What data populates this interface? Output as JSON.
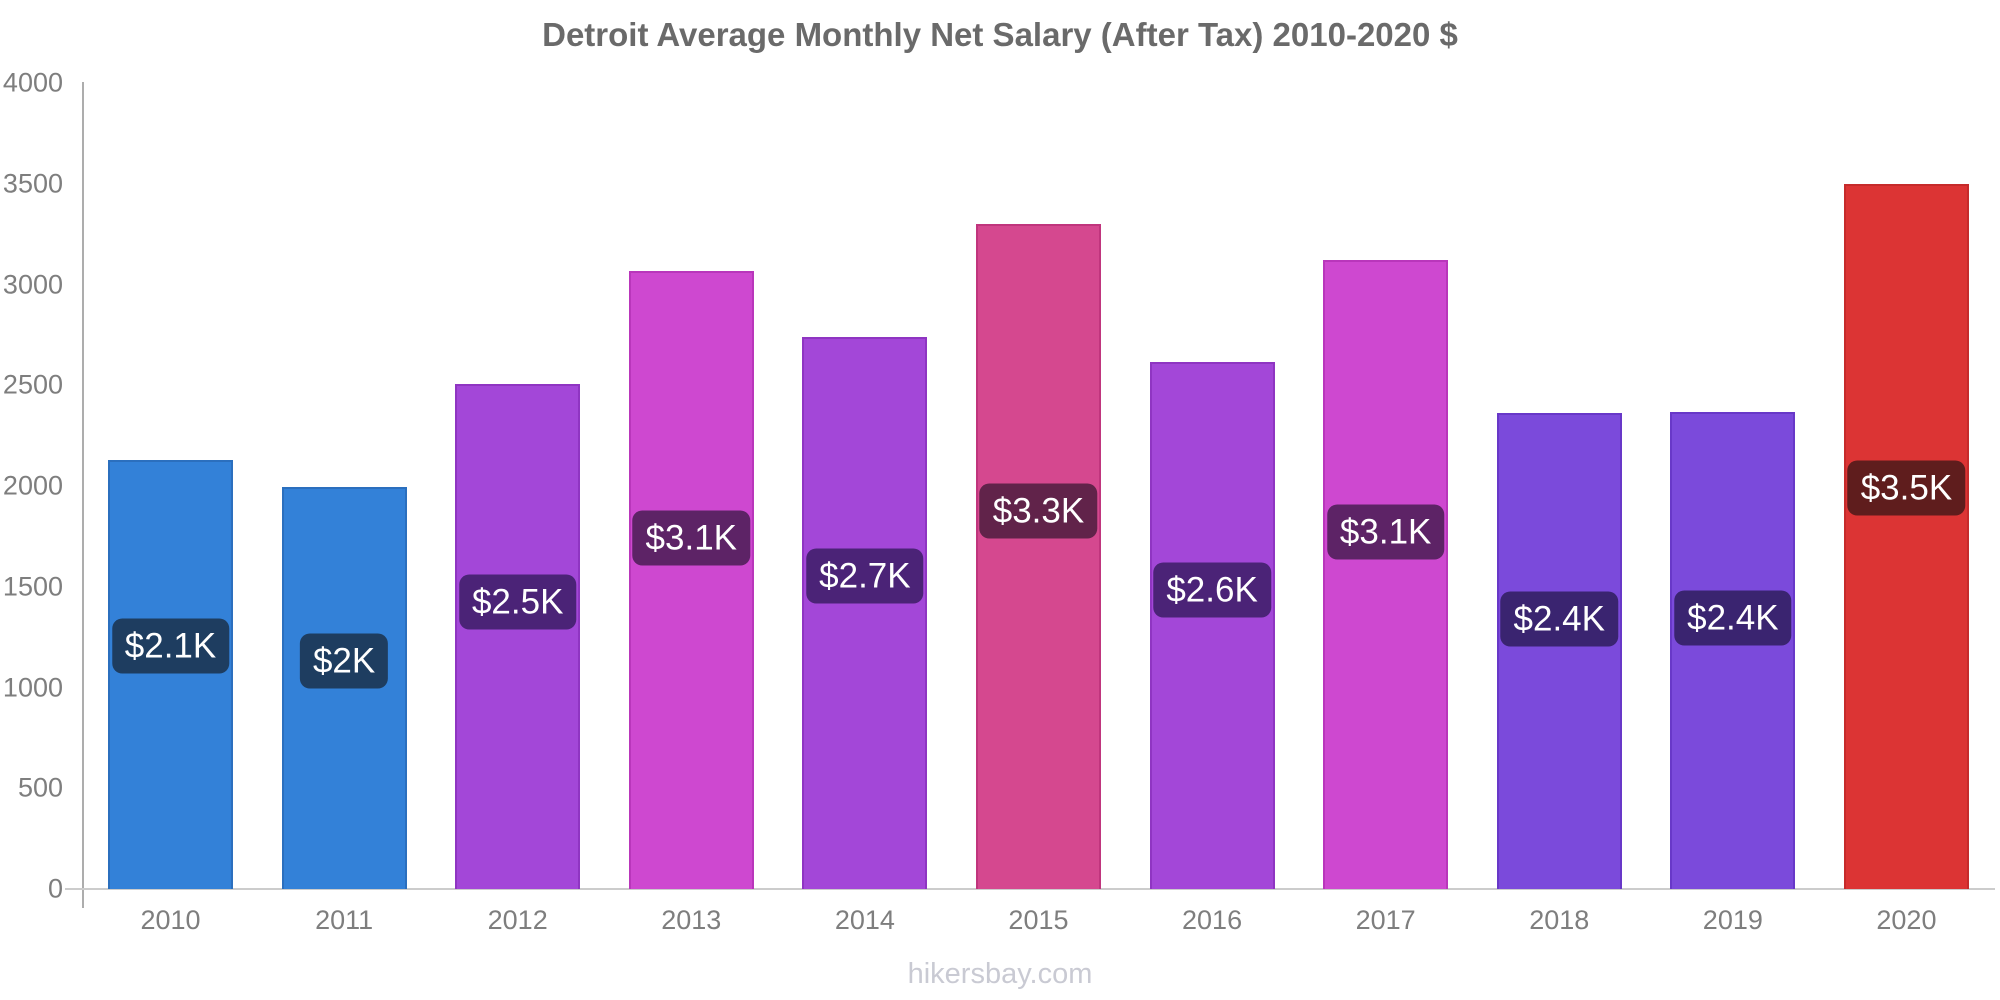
{
  "page": {
    "title": "Detroit Average Monthly Net Salary (After Tax) 2010-2020 $",
    "watermark": "hikersbay.com"
  },
  "chart_data": {
    "type": "bar",
    "title": "Detroit Average Monthly Net Salary (After Tax) 2010-2020 $",
    "categories": [
      "2010",
      "2011",
      "2012",
      "2013",
      "2014",
      "2015",
      "2016",
      "2017",
      "2018",
      "2019",
      "2020"
    ],
    "values": [
      2130,
      1995,
      2505,
      3065,
      2740,
      3300,
      2615,
      3120,
      2360,
      2365,
      3500
    ],
    "bar_labels": [
      "$2.1K",
      "$2K",
      "$2.5K",
      "$3.1K",
      "$2.7K",
      "$3.3K",
      "$2.6K",
      "$3.1K",
      "$2.4K",
      "$2.4K",
      "$3.5K"
    ],
    "bar_colors": [
      "#3381D8",
      "#3381D8",
      "#A347D8",
      "#CE48D0",
      "#A347D8",
      "#D5488F",
      "#A347D8",
      "#CE48D0",
      "#7B4ADB",
      "#7B4ADB",
      "#DC3434"
    ],
    "bar_border_colors": [
      "#2B6FBE",
      "#2B6FBE",
      "#8F35C2",
      "#B936BB",
      "#8F35C2",
      "#C0357D",
      "#8F35C2",
      "#B936BB",
      "#6838C8",
      "#6838C8",
      "#C62B2B"
    ],
    "badge_colors": [
      "#1E3D60",
      "#1E3D60",
      "#4B2377",
      "#5D2366",
      "#4B2377",
      "#61234A",
      "#4B2377",
      "#5D2366",
      "#3A2470",
      "#3A2470",
      "#5F1D1D"
    ],
    "xlabel": "",
    "ylabel": "",
    "ylim": [
      0,
      4000
    ],
    "y_ticks": [
      0,
      500,
      1000,
      1500,
      2000,
      2500,
      3000,
      3500,
      4000
    ],
    "grid": false,
    "legend": false,
    "colors": {
      "title_text": "#6A6A6A",
      "axis_text": "#7E7E7E",
      "y_axis_line": "#ADADAD",
      "x_axis_line": "#CCCCCC",
      "badge_text": "#FFFFFF",
      "watermark_text": "#C9CAD3",
      "background": "#FFFFFF"
    }
  }
}
